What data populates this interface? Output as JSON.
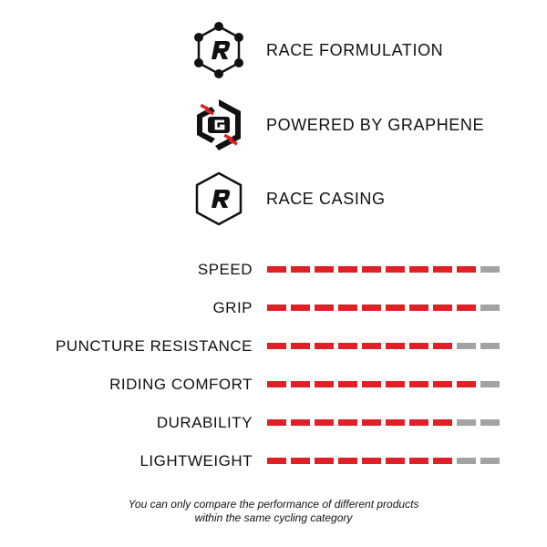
{
  "features": [
    {
      "icon": "race-formulation-icon",
      "label": "RACE FORMULATION"
    },
    {
      "icon": "graphene-icon",
      "label": "POWERED BY GRAPHENE"
    },
    {
      "icon": "race-casing-icon",
      "label": "RACE CASING"
    }
  ],
  "ratings_scale_max": 10,
  "ratings": [
    {
      "label": "SPEED",
      "value": 9
    },
    {
      "label": "GRIP",
      "value": 9
    },
    {
      "label": "PUNCTURE RESISTANCE",
      "value": 8
    },
    {
      "label": "RIDING COMFORT",
      "value": 9
    },
    {
      "label": "DURABILITY",
      "value": 8
    },
    {
      "label": "LIGHTWEIGHT",
      "value": 8
    }
  ],
  "colors": {
    "filled": "#e11f26",
    "empty": "#a3a3a3",
    "icon": "#111111"
  },
  "note_line1": "You can only compare the performance of different products",
  "note_line2": "within the same cycling category"
}
